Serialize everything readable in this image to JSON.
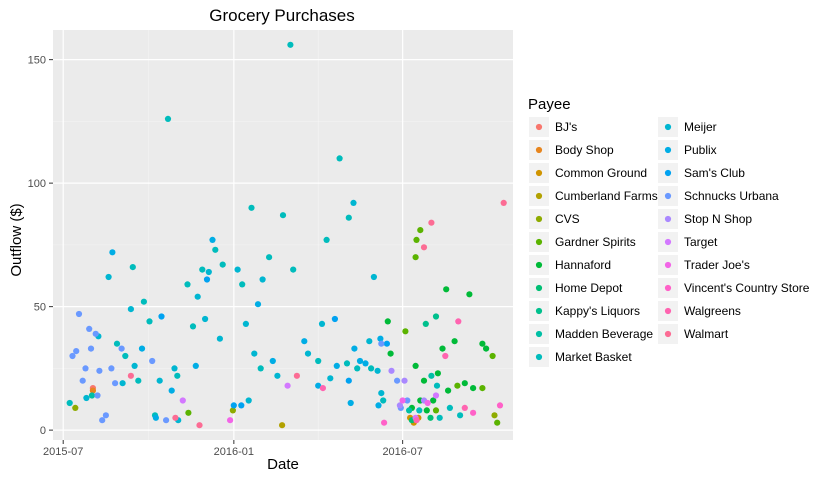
{
  "chart_data": {
    "type": "scatter",
    "title": "Grocery Purchases",
    "xlabel": "Date",
    "ylabel": "Outflow ($)",
    "x_axis_type": "date",
    "xlim": [
      "2015-06-20",
      "2016-10-28"
    ],
    "ylim": [
      -4,
      162
    ],
    "x_ticks": [
      {
        "label": "2015-07",
        "value": "2015-07-01"
      },
      {
        "label": "2016-01",
        "value": "2016-01-01"
      },
      {
        "label": "2016-07",
        "value": "2016-07-01"
      }
    ],
    "y_ticks": [
      0,
      50,
      100,
      150
    ],
    "grid": true,
    "legend_title": "Payee",
    "legend_position": "right",
    "series": [
      {
        "name": "BJ's",
        "color": "#F8766D",
        "points": [
          [
            "2015-08-02",
            17
          ]
        ]
      },
      {
        "name": "Body Shop",
        "color": "#E7851E",
        "points": [
          [
            "2015-08-02",
            16
          ]
        ]
      },
      {
        "name": "Common Ground",
        "color": "#D09400",
        "points": [
          [
            "2016-07-09",
            5
          ],
          [
            "2016-07-13",
            3
          ],
          [
            "2016-07-18",
            5
          ]
        ]
      },
      {
        "name": "Cumberland Farms",
        "color": "#B2A100",
        "points": [
          [
            "2016-02-22",
            2
          ]
        ]
      },
      {
        "name": "CVS",
        "color": "#8EAB00",
        "points": [
          [
            "2015-07-14",
            9
          ],
          [
            "2015-12-31",
            8
          ],
          [
            "2016-10-08",
            6
          ]
        ]
      },
      {
        "name": "Gardner Spirits",
        "color": "#5BB300",
        "points": [
          [
            "2015-11-13",
            7
          ],
          [
            "2016-07-04",
            40
          ],
          [
            "2016-07-15",
            70
          ],
          [
            "2016-07-16",
            77
          ],
          [
            "2016-07-20",
            81
          ],
          [
            "2016-08-06",
            8
          ],
          [
            "2016-08-29",
            18
          ],
          [
            "2016-09-25",
            17
          ],
          [
            "2016-10-06",
            30
          ],
          [
            "2016-10-11",
            3
          ]
        ]
      },
      {
        "name": "Hannaford",
        "color": "#00BA38",
        "points": [
          [
            "2016-06-15",
            44
          ],
          [
            "2016-06-18",
            31
          ],
          [
            "2016-07-11",
            9
          ],
          [
            "2016-07-15",
            26
          ],
          [
            "2016-07-20",
            12
          ],
          [
            "2016-07-24",
            20
          ],
          [
            "2016-07-27",
            8
          ],
          [
            "2016-08-03",
            12
          ],
          [
            "2016-08-08",
            23
          ],
          [
            "2016-08-13",
            33
          ],
          [
            "2016-08-17",
            57
          ],
          [
            "2016-08-19",
            16
          ],
          [
            "2016-08-26",
            36
          ],
          [
            "2016-09-06",
            19
          ],
          [
            "2016-09-11",
            55
          ],
          [
            "2016-09-15",
            17
          ],
          [
            "2016-09-25",
            35
          ],
          [
            "2016-09-29",
            33
          ]
        ]
      },
      {
        "name": "Home Depot",
        "color": "#00BF74",
        "points": [
          [
            "2016-07-11",
            4
          ],
          [
            "2016-07-31",
            5
          ]
        ]
      },
      {
        "name": "Kappy's Liquors",
        "color": "#00C08D",
        "points": [
          [
            "2016-07-26",
            43
          ],
          [
            "2016-08-06",
            46
          ]
        ]
      },
      {
        "name": "Madden Beverage",
        "color": "#00BFA5",
        "points": [
          [
            "2015-08-01",
            14
          ],
          [
            "2016-07-08",
            8
          ],
          [
            "2016-08-01",
            22
          ]
        ]
      },
      {
        "name": "Market Basket",
        "color": "#00BCBC",
        "points": [
          [
            "2015-07-08",
            11
          ],
          [
            "2015-08-28",
            35
          ],
          [
            "2015-09-06",
            30
          ],
          [
            "2015-09-14",
            66
          ],
          [
            "2015-09-20",
            20
          ],
          [
            "2015-09-26",
            52
          ],
          [
            "2015-10-02",
            44
          ],
          [
            "2015-10-08",
            6
          ],
          [
            "2015-10-22",
            126
          ],
          [
            "2015-11-01",
            22
          ],
          [
            "2015-11-12",
            59
          ],
          [
            "2015-11-18",
            42
          ],
          [
            "2015-11-28",
            65
          ],
          [
            "2015-12-12",
            73
          ],
          [
            "2015-12-20",
            67
          ],
          [
            "2016-01-10",
            59
          ],
          [
            "2016-01-20",
            90
          ],
          [
            "2016-01-30",
            25
          ],
          [
            "2016-02-08",
            70
          ],
          [
            "2016-02-23",
            87
          ],
          [
            "2016-03-02",
            156
          ],
          [
            "2016-03-05",
            65
          ],
          [
            "2016-04-01",
            28
          ],
          [
            "2016-04-10",
            77
          ],
          [
            "2016-04-24",
            110
          ],
          [
            "2016-05-02",
            27
          ],
          [
            "2016-05-04",
            86
          ],
          [
            "2016-05-13",
            25
          ],
          [
            "2016-05-28",
            25
          ],
          [
            "2016-06-10",
            12
          ],
          [
            "2016-07-19",
            8
          ],
          [
            "2016-08-07",
            18
          ],
          [
            "2016-08-10",
            5
          ],
          [
            "2016-08-21",
            9
          ],
          [
            "2016-09-01",
            6
          ]
        ]
      },
      {
        "name": "Meijer",
        "color": "#00B6D1",
        "points": [
          [
            "2015-07-26",
            13
          ],
          [
            "2015-08-08",
            38
          ],
          [
            "2015-08-19",
            62
          ],
          [
            "2015-09-03",
            19
          ],
          [
            "2015-09-12",
            49
          ],
          [
            "2015-09-16",
            26
          ],
          [
            "2015-10-13",
            20
          ],
          [
            "2015-10-29",
            25
          ],
          [
            "2015-11-02",
            4
          ],
          [
            "2015-11-23",
            54
          ],
          [
            "2015-12-01",
            45
          ],
          [
            "2015-12-05",
            64
          ],
          [
            "2015-12-17",
            37
          ],
          [
            "2016-01-05",
            65
          ],
          [
            "2016-01-14",
            43
          ],
          [
            "2016-01-17",
            12
          ],
          [
            "2016-01-23",
            31
          ],
          [
            "2016-02-01",
            61
          ],
          [
            "2016-02-17",
            22
          ],
          [
            "2016-03-21",
            31
          ],
          [
            "2016-04-05",
            43
          ],
          [
            "2016-04-14",
            21
          ],
          [
            "2016-05-09",
            92
          ],
          [
            "2016-05-26",
            36
          ],
          [
            "2016-05-31",
            62
          ],
          [
            "2016-06-04",
            24
          ],
          [
            "2016-06-08",
            15
          ]
        ]
      },
      {
        "name": "Publix",
        "color": "#00ADE5",
        "points": [
          [
            "2015-08-23",
            72
          ],
          [
            "2015-09-24",
            33
          ],
          [
            "2015-10-09",
            5
          ],
          [
            "2015-10-26",
            16
          ],
          [
            "2015-11-21",
            26
          ],
          [
            "2015-12-09",
            77
          ],
          [
            "2016-01-27",
            51
          ],
          [
            "2016-02-12",
            28
          ],
          [
            "2016-03-17",
            36
          ],
          [
            "2016-04-01",
            18
          ],
          [
            "2016-04-21",
            26
          ],
          [
            "2016-05-06",
            11
          ],
          [
            "2016-05-10",
            33
          ],
          [
            "2016-05-16",
            28
          ],
          [
            "2016-05-22",
            27
          ],
          [
            "2016-06-05",
            10
          ],
          [
            "2016-06-07",
            37
          ]
        ]
      },
      {
        "name": "Sam's Club",
        "color": "#00A2F1",
        "points": [
          [
            "2015-10-15",
            46
          ],
          [
            "2015-12-03",
            61
          ],
          [
            "2016-01-01",
            10
          ],
          [
            "2016-01-09",
            10
          ],
          [
            "2016-04-19",
            45
          ],
          [
            "2016-05-04",
            20
          ],
          [
            "2016-06-14",
            35
          ]
        ]
      },
      {
        "name": "Schnucks Urbana",
        "color": "#6A99FF",
        "points": [
          [
            "2015-07-11",
            30
          ],
          [
            "2015-07-15",
            32
          ],
          [
            "2015-07-18",
            47
          ],
          [
            "2015-07-22",
            20
          ],
          [
            "2015-07-25",
            25
          ],
          [
            "2015-07-29",
            41
          ],
          [
            "2015-07-31",
            33
          ],
          [
            "2015-08-05",
            39
          ],
          [
            "2015-08-07",
            14
          ],
          [
            "2015-08-09",
            24
          ],
          [
            "2015-08-12",
            4
          ],
          [
            "2015-08-16",
            6
          ],
          [
            "2015-08-22",
            25
          ],
          [
            "2015-08-26",
            19
          ],
          [
            "2015-09-02",
            33
          ],
          [
            "2015-10-05",
            28
          ],
          [
            "2015-10-20",
            4
          ],
          [
            "2016-06-08",
            35
          ],
          [
            "2016-06-25",
            20
          ],
          [
            "2016-06-29",
            9
          ],
          [
            "2016-07-06",
            12
          ]
        ]
      },
      {
        "name": "Stop N Shop",
        "color": "#AA88FF",
        "points": [
          [
            "2016-06-19",
            24
          ],
          [
            "2016-06-28",
            10
          ],
          [
            "2016-07-03",
            20
          ],
          [
            "2016-07-24",
            12
          ]
        ]
      },
      {
        "name": "Target",
        "color": "#D378FF",
        "points": [
          [
            "2015-11-07",
            12
          ],
          [
            "2016-02-28",
            18
          ],
          [
            "2016-07-15",
            5
          ],
          [
            "2016-08-06",
            14
          ]
        ]
      },
      {
        "name": "Trader Joe's",
        "color": "#F265E7",
        "points": [
          [
            "2015-12-28",
            4
          ],
          [
            "2016-07-01",
            12
          ],
          [
            "2016-07-28",
            11
          ]
        ]
      },
      {
        "name": "Vincent's Country Store",
        "color": "#FF61C8",
        "points": [
          [
            "2016-06-11",
            3
          ],
          [
            "2016-09-15",
            7
          ],
          [
            "2016-10-14",
            10
          ]
        ]
      },
      {
        "name": "Walgreens",
        "color": "#FF64B0",
        "points": [
          [
            "2016-04-06",
            17
          ],
          [
            "2016-07-16",
            4
          ],
          [
            "2016-08-16",
            30
          ],
          [
            "2016-08-30",
            44
          ],
          [
            "2016-09-06",
            9
          ]
        ]
      },
      {
        "name": "Walmart",
        "color": "#FC6C94",
        "points": [
          [
            "2015-09-12",
            22
          ],
          [
            "2015-10-30",
            5
          ],
          [
            "2015-11-25",
            2
          ],
          [
            "2016-03-09",
            22
          ],
          [
            "2016-07-24",
            74
          ],
          [
            "2016-08-01",
            84
          ],
          [
            "2016-10-18",
            92
          ]
        ]
      }
    ]
  }
}
